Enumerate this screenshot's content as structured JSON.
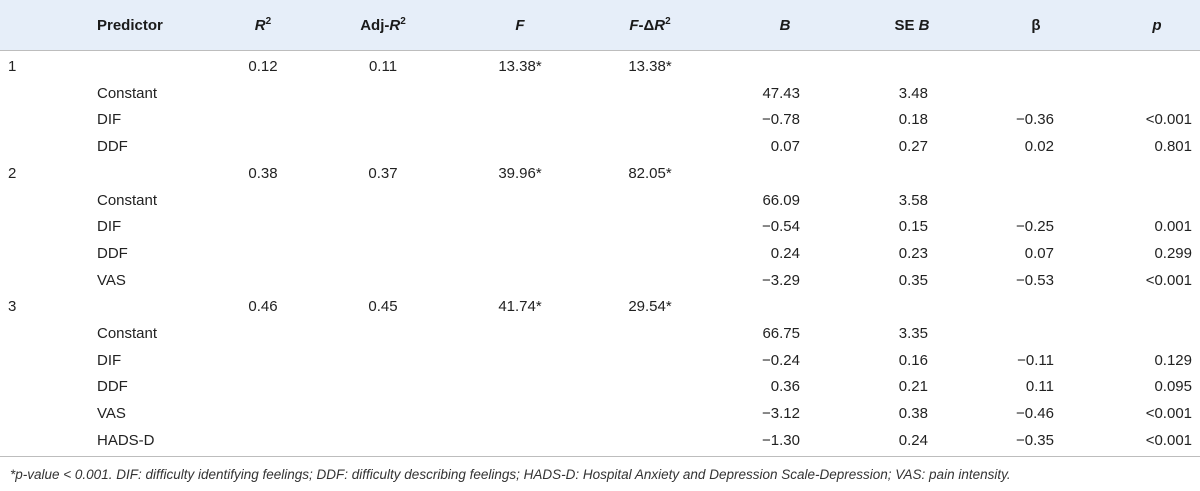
{
  "table": {
    "header": {
      "predictor": "Predictor",
      "r2_base": "R",
      "r2_sup": "2",
      "adjr2_prefix": "Adj-",
      "adjr2_base": "R",
      "adjr2_sup": "2",
      "f": "F",
      "fdelta_prefix": "F",
      "fdelta_mid": "-Δ",
      "fdelta_base": "R",
      "fdelta_sup": "2",
      "b": "B",
      "seb_prefix": "SE ",
      "seb_base": "B",
      "beta": "β",
      "p": "p"
    },
    "rows": [
      {
        "model": "1",
        "r2": "0.12",
        "adjr2": "0.11",
        "f": "13.38*",
        "fdelta": "13.38*"
      },
      {
        "predictor": "Constant",
        "b": "47.43",
        "seb": "3.48"
      },
      {
        "predictor": "DIF",
        "b": "−0.78",
        "seb": "0.18",
        "beta": "−0.36",
        "p": "<0.001"
      },
      {
        "predictor": "DDF",
        "b": "0.07",
        "seb": "0.27",
        "beta": "0.02",
        "p": "0.801"
      },
      {
        "model": "2",
        "r2": "0.38",
        "adjr2": "0.37",
        "f": "39.96*",
        "fdelta": "82.05*"
      },
      {
        "predictor": "Constant",
        "b": "66.09",
        "seb": "3.58"
      },
      {
        "predictor": "DIF",
        "b": "−0.54",
        "seb": "0.15",
        "beta": "−0.25",
        "p": "0.001"
      },
      {
        "predictor": "DDF",
        "b": "0.24",
        "seb": "0.23",
        "beta": "0.07",
        "p": "0.299"
      },
      {
        "predictor": "VAS",
        "b": "−3.29",
        "seb": "0.35",
        "beta": "−0.53",
        "p": "<0.001"
      },
      {
        "model": "3",
        "r2": "0.46",
        "adjr2": "0.45",
        "f": "41.74*",
        "fdelta": "29.54*"
      },
      {
        "predictor": "Constant",
        "b": "66.75",
        "seb": "3.35"
      },
      {
        "predictor": "DIF",
        "b": "−0.24",
        "seb": "0.16",
        "beta": "−0.11",
        "p": "0.129"
      },
      {
        "predictor": "DDF",
        "b": "0.36",
        "seb": "0.21",
        "beta": "0.11",
        "p": "0.095"
      },
      {
        "predictor": "VAS",
        "b": "−3.12",
        "seb": "0.38",
        "beta": "−0.46",
        "p": "<0.001"
      },
      {
        "predictor": "HADS-D",
        "b": "−1.30",
        "seb": "0.24",
        "beta": "−0.35",
        "p": "<0.001"
      }
    ]
  },
  "footnote": "*p-value < 0.001. DIF: difficulty identifying feelings; DDF: difficulty describing feelings; HADS-D: Hospital Anxiety and Depression Scale-Depression; VAS: pain intensity.",
  "colors": {
    "header_bg": "#e6eef9",
    "rule": "#bdbdbd",
    "text": "#222222"
  }
}
